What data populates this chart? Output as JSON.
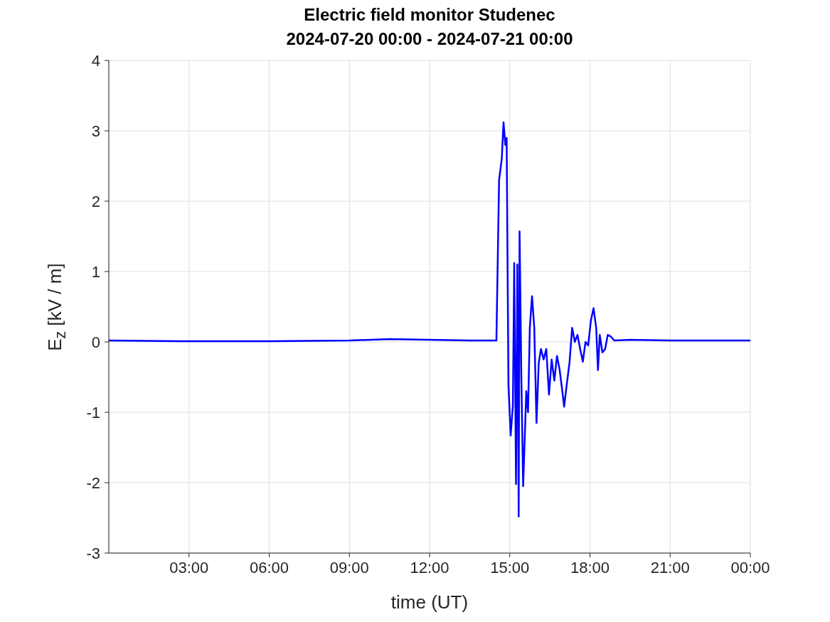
{
  "chart_data": {
    "type": "line",
    "title": "Electric field monitor Studenec",
    "subtitle": "2024-07-20 00:00 - 2024-07-21 00:00",
    "xlabel": "time (UT)",
    "ylabel": "E$_{z}$ [kV / m]",
    "x": [
      "2024-07-20T00:00",
      "2024-07-20T03:00",
      "2024-07-20T06:00",
      "2024-07-20T09:00",
      "2024-07-20T10:30",
      "2024-07-20T12:00",
      "2024-07-20T13:30",
      "2024-07-20T14:30",
      "2024-07-20T14:36",
      "2024-07-20T14:42",
      "2024-07-20T14:46",
      "2024-07-20T14:50",
      "2024-07-20T14:53",
      "2024-07-20T14:57",
      "2024-07-20T15:02",
      "2024-07-20T15:07",
      "2024-07-20T15:10",
      "2024-07-20T15:14",
      "2024-07-20T15:17",
      "2024-07-20T15:20",
      "2024-07-20T15:22",
      "2024-07-20T15:26",
      "2024-07-20T15:30",
      "2024-07-20T15:34",
      "2024-07-20T15:37",
      "2024-07-20T15:41",
      "2024-07-20T15:45",
      "2024-07-20T15:50",
      "2024-07-20T15:55",
      "2024-07-20T16:00",
      "2024-07-20T16:05",
      "2024-07-20T16:10",
      "2024-07-20T16:16",
      "2024-07-20T16:22",
      "2024-07-20T16:28",
      "2024-07-20T16:34",
      "2024-07-20T16:40",
      "2024-07-20T16:46",
      "2024-07-20T16:52",
      "2024-07-20T16:58",
      "2024-07-20T17:02",
      "2024-07-20T17:08",
      "2024-07-20T17:14",
      "2024-07-20T17:20",
      "2024-07-20T17:26",
      "2024-07-20T17:32",
      "2024-07-20T17:38",
      "2024-07-20T17:44",
      "2024-07-20T17:50",
      "2024-07-20T17:56",
      "2024-07-20T18:02",
      "2024-07-20T18:08",
      "2024-07-20T18:14",
      "2024-07-20T18:18",
      "2024-07-20T18:22",
      "2024-07-20T18:28",
      "2024-07-20T18:34",
      "2024-07-20T18:40",
      "2024-07-20T18:46",
      "2024-07-20T18:55",
      "2024-07-20T19:30",
      "2024-07-20T21:00",
      "2024-07-21T00:00"
    ],
    "series": [
      {
        "color": "#0000ff",
        "values": [
          0.02,
          0.01,
          0.01,
          0.02,
          0.04,
          0.03,
          0.02,
          0.02,
          2.3,
          2.6,
          3.12,
          2.8,
          2.9,
          -0.6,
          -1.33,
          -0.9,
          1.12,
          -2.02,
          1.1,
          -2.48,
          1.57,
          -0.5,
          -2.05,
          -1.3,
          -0.7,
          -1.0,
          0.2,
          0.65,
          0.2,
          -1.15,
          -0.3,
          -0.1,
          -0.25,
          -0.1,
          -0.75,
          -0.25,
          -0.55,
          -0.2,
          -0.4,
          -0.7,
          -0.92,
          -0.6,
          -0.3,
          0.2,
          0.0,
          0.1,
          -0.1,
          -0.28,
          0.0,
          -0.05,
          0.3,
          0.48,
          0.2,
          -0.4,
          0.1,
          -0.15,
          -0.1,
          0.1,
          0.08,
          0.02,
          0.03,
          0.02,
          0.02
        ]
      }
    ],
    "xlim": [
      "2024-07-20T00:00",
      "2024-07-21T00:00"
    ],
    "xticks": [
      {
        "value": "2024-07-20T03:00",
        "label": "03:00"
      },
      {
        "value": "2024-07-20T06:00",
        "label": "06:00"
      },
      {
        "value": "2024-07-20T09:00",
        "label": "09:00"
      },
      {
        "value": "2024-07-20T12:00",
        "label": "12:00"
      },
      {
        "value": "2024-07-20T15:00",
        "label": "15:00"
      },
      {
        "value": "2024-07-20T18:00",
        "label": "18:00"
      },
      {
        "value": "2024-07-20T21:00",
        "label": "21:00"
      },
      {
        "value": "2024-07-21T00:00",
        "label": "00:00"
      }
    ],
    "ylim": [
      -3,
      4
    ],
    "yticks": [
      -3,
      -2,
      -1,
      0,
      1,
      2,
      3,
      4
    ],
    "grid": true,
    "marker": "none",
    "line_style": "solid"
  }
}
